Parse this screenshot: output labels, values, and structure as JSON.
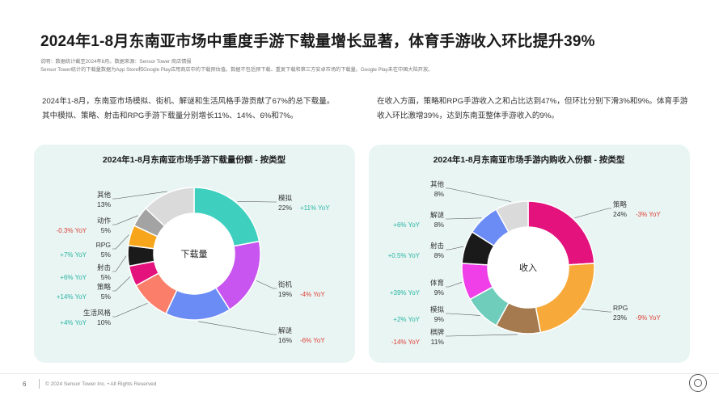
{
  "page": {
    "title": "2024年1-8月东南亚市场中重度手游下载量增长显著，体育手游收入环比提升39%",
    "note_line1": "说明：数据统计截至2024年8月。数据来源：Sensor Tower 商店情报",
    "note_line2": "Sensor Tower统计的下载量数据为App Store和Google Play应用商店中的下载预估值。数据不包括预下载、重复下载和第三方安卓市场的下载量。Google Play未在中国大陆开放。",
    "summary_left": "2024年1-8月，东南亚市场模拟、街机、解谜和生活风格手游贡献了67%的总下载量。其中模拟、策略、射击和RPG手游下载量分别增长11%、14%、6%和7%。",
    "summary_right": "在收入方面，策略和RPG手游收入之和占比达到47%，但环比分别下滑3%和9%。体育手游收入环比激增39%，达到东南亚整体手游收入的9%。",
    "page_number": "6",
    "copyright": "© 2024 Sensor Tower Inc. • All Rights Reserved",
    "watermark": "Sensor Tower"
  },
  "chart_data": [
    {
      "type": "pie",
      "title": "2024年1-8月东南亚市场手游下载量份额 - 按类型",
      "center_label": "下载量",
      "slices": [
        {
          "name": "模拟",
          "value": 22,
          "label": "22%",
          "yoy": "+11% YoY",
          "color": "#3ecfbf",
          "side": "right"
        },
        {
          "name": "街机",
          "value": 19,
          "label": "19%",
          "yoy": "-4% YoY",
          "color": "#c855f0",
          "side": "right"
        },
        {
          "name": "解谜",
          "value": 16,
          "label": "16%",
          "yoy": "-6% YoY",
          "color": "#6b8cf5",
          "side": "right"
        },
        {
          "name": "生活风格",
          "value": 10,
          "label": "10%",
          "yoy": "+4% YoY",
          "color": "#fa7e6a",
          "side": "left"
        },
        {
          "name": "策略",
          "value": 5,
          "label": "5%",
          "yoy": "+14% YoY",
          "color": "#e3127c",
          "side": "left"
        },
        {
          "name": "射击",
          "value": 5,
          "label": "5%",
          "yoy": "+6% YoY",
          "color": "#1a1a1a",
          "side": "left"
        },
        {
          "name": "RPG",
          "value": 5,
          "label": "5%",
          "yoy": "+7% YoY",
          "color": "#f7a51b",
          "side": "left"
        },
        {
          "name": "动作",
          "value": 5,
          "label": "5%",
          "yoy": "-0.3% YoY",
          "color": "#a3a3a3",
          "side": "left"
        },
        {
          "name": "其他",
          "value": 13,
          "label": "13%",
          "yoy": "",
          "color": "#dadada",
          "side": "left"
        }
      ]
    },
    {
      "type": "pie",
      "title": "2024年1-8月东南亚市场手游内购收入份额 - 按类型",
      "center_label": "收入",
      "slices": [
        {
          "name": "策略",
          "value": 24,
          "label": "24%",
          "yoy": "-3% YoY",
          "color": "#e3127c",
          "side": "right"
        },
        {
          "name": "RPG",
          "value": 23,
          "label": "23%",
          "yoy": "-9% YoY",
          "color": "#f7a93a",
          "side": "right"
        },
        {
          "name": "棋牌",
          "value": 11,
          "label": "11%",
          "yoy": "-14% YoY",
          "color": "#a47a4e",
          "side": "left"
        },
        {
          "name": "模拟",
          "value": 9,
          "label": "9%",
          "yoy": "+2% YoY",
          "color": "#6fcdbc",
          "side": "left"
        },
        {
          "name": "体育",
          "value": 9,
          "label": "9%",
          "yoy": "+39% YoY",
          "color": "#f03ee8",
          "side": "left"
        },
        {
          "name": "射击",
          "value": 8,
          "label": "8%",
          "yoy": "+0.5% YoY",
          "color": "#1a1a1a",
          "side": "left"
        },
        {
          "name": "解谜",
          "value": 8,
          "label": "8%",
          "yoy": "+6% YoY",
          "color": "#6b8cf5",
          "side": "left"
        },
        {
          "name": "其他",
          "value": 8,
          "label": "8%",
          "yoy": "",
          "color": "#dadada",
          "side": "left"
        }
      ]
    }
  ],
  "colors": {
    "positive_yoy": "#2bb5a3",
    "negative_yoy": "#e0413a"
  }
}
